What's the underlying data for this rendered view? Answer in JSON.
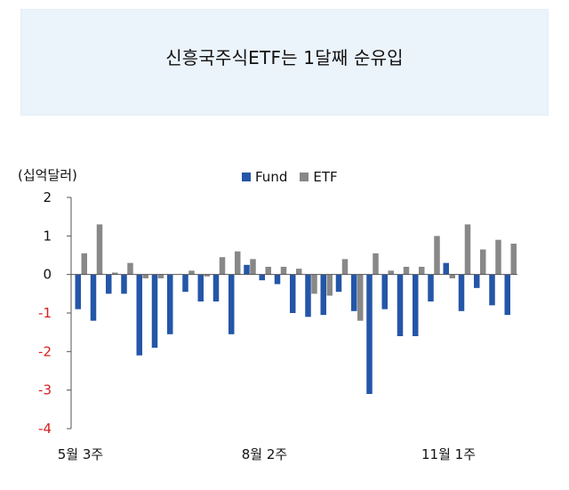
{
  "header": {
    "title": "신흥국주식ETF는 1달째 순유입"
  },
  "chart_data": {
    "type": "bar",
    "unit_label": "(십억달러)",
    "ylim": [
      -4,
      2
    ],
    "yticks": [
      "2",
      "1",
      "0",
      "-1",
      "-2",
      "-3",
      "-4"
    ],
    "x_tick_labels": [
      "5월 3주",
      "8월 2주",
      "11월 1주"
    ],
    "x_tick_label_weeks": [
      0,
      12,
      24
    ],
    "weeks": 29,
    "legend_position": "top",
    "series": [
      {
        "name": "Fund",
        "color": "#2456a8",
        "values": [
          -0.9,
          -1.2,
          -0.5,
          -0.5,
          -2.1,
          -1.9,
          -1.55,
          -0.45,
          -0.7,
          -0.7,
          -1.55,
          0.25,
          -0.15,
          -0.25,
          -1.0,
          -1.1,
          -1.05,
          -0.45,
          -0.95,
          -3.1,
          -0.9,
          -1.6,
          -1.6,
          -0.7,
          0.3,
          -0.95,
          -0.35,
          -0.8,
          -1.05
        ]
      },
      {
        "name": "ETF",
        "color": "#888888",
        "values": [
          0.55,
          1.3,
          0.05,
          0.3,
          -0.1,
          -0.1,
          0.0,
          0.1,
          -0.05,
          0.45,
          0.6,
          0.4,
          0.2,
          0.2,
          0.15,
          -0.5,
          -0.55,
          0.4,
          -1.2,
          0.55,
          0.1,
          0.2,
          0.2,
          1.0,
          -0.1,
          1.3,
          0.65,
          0.9,
          0.8
        ]
      }
    ]
  }
}
